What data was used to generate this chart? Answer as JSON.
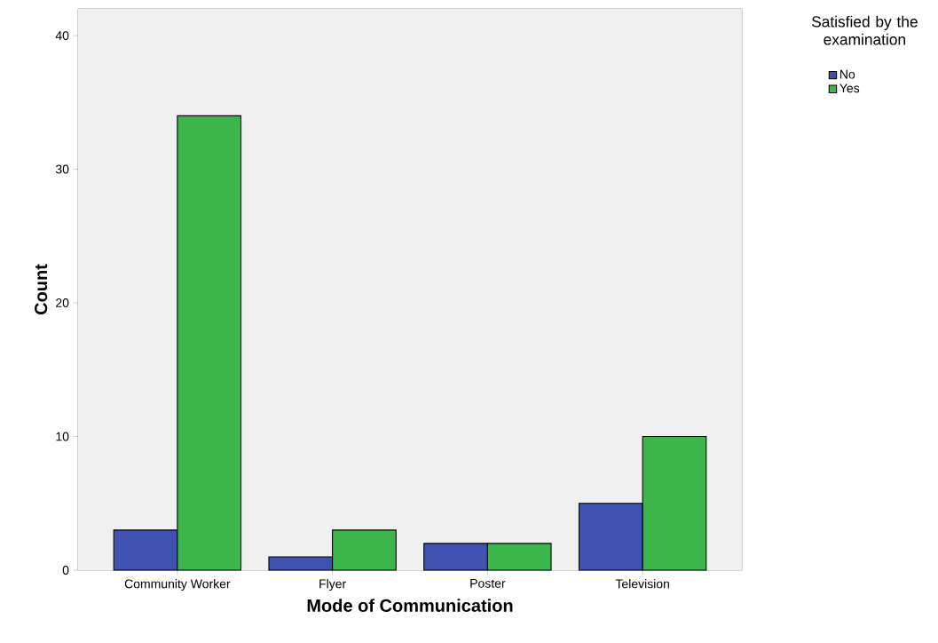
{
  "chart_data": {
    "type": "bar",
    "xlabel": "Mode of Communication",
    "ylabel": "Count",
    "legend_title": "Satisfied by the examination",
    "legend": "top right",
    "categories": [
      "Community Worker",
      "Flyer",
      "Poster",
      "Television"
    ],
    "series": [
      {
        "name": "No",
        "color": "#3f51b1",
        "values": [
          3,
          1,
          2,
          5
        ]
      },
      {
        "name": "Yes",
        "color": "#3cb54a",
        "values": [
          34,
          3,
          2,
          10
        ]
      }
    ],
    "ylim": [
      0,
      42
    ],
    "yticks": [
      0,
      10,
      20,
      30,
      40
    ]
  }
}
